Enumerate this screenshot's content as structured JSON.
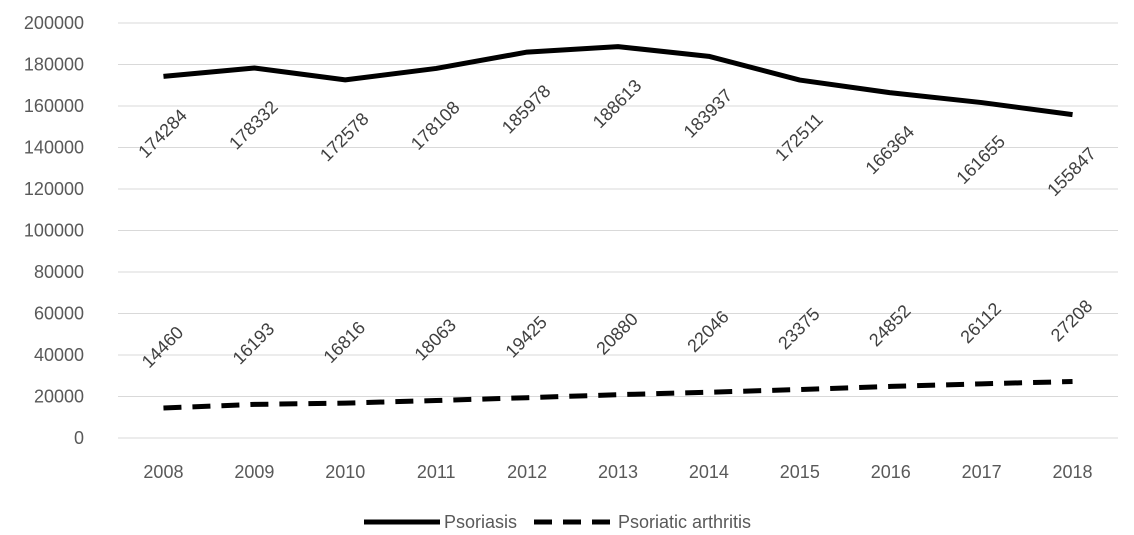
{
  "chart_data": {
    "type": "line",
    "title": "",
    "xlabel": "",
    "ylabel": "",
    "categories": [
      "2008",
      "2009",
      "2010",
      "2011",
      "2012",
      "2013",
      "2014",
      "2015",
      "2016",
      "2017",
      "2018"
    ],
    "ylim": [
      0,
      200000
    ],
    "yticks": [
      0,
      20000,
      40000,
      60000,
      80000,
      100000,
      120000,
      140000,
      160000,
      180000,
      200000
    ],
    "ytick_labels": [
      "0",
      "20000",
      "40000",
      "60000",
      "80000",
      "100000",
      "120000",
      "140000",
      "160000",
      "180000",
      "200000"
    ],
    "grid": true,
    "legend_position": "bottom",
    "series": [
      {
        "name": "Psoriasis",
        "values": [
          174284,
          178332,
          172578,
          178108,
          185978,
          188613,
          183937,
          172511,
          166364,
          161655,
          155847
        ],
        "labels": [
          "174284",
          "178332",
          "172578",
          "178108",
          "185978",
          "188613",
          "183937",
          "172511",
          "166364",
          "161655",
          "155847"
        ],
        "color": "#000000",
        "line_style": "solid"
      },
      {
        "name": "Psoriatic arthritis",
        "values": [
          14460,
          16193,
          16816,
          18063,
          19425,
          20880,
          22046,
          23375,
          24852,
          26112,
          27208
        ],
        "labels": [
          "14460",
          "16193",
          "16816",
          "18063",
          "19425",
          "20880",
          "22046",
          "23375",
          "24852",
          "26112",
          "27208"
        ],
        "color": "#000000",
        "line_style": "dashed"
      }
    ]
  }
}
